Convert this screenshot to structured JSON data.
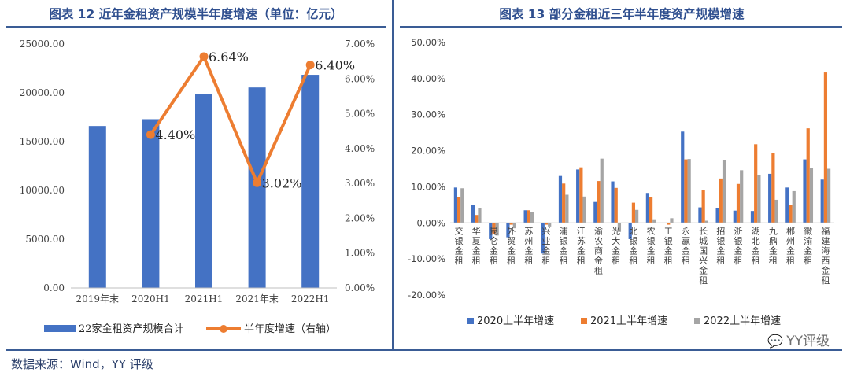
{
  "left_panel": {
    "title": "图表 12 近年金租资产规模半年度增速（单位：亿元）"
  },
  "right_panel": {
    "title": "图表 13 部分金租近三年半年度资产规模增速"
  },
  "footer": {
    "source": "数据来源：Wind，YY 评级"
  },
  "watermark": {
    "text": "YY评级",
    "icon": "wechat-icon"
  },
  "chart_data": [
    {
      "type": "bar",
      "categories": [
        "2019年末",
        "2020H1",
        "2021H1",
        "2021年末",
        "2022H1"
      ],
      "series": [
        {
          "name": "22家金租资产规模合计",
          "chart": "bar",
          "axis": "left",
          "color": "#4472c4",
          "values": [
            16600,
            17300,
            19850,
            20550,
            21850
          ]
        },
        {
          "name": "半年度增速（右轴）",
          "chart": "line",
          "axis": "right",
          "color": "#ed7d31",
          "values": [
            null,
            4.4,
            6.64,
            3.02,
            6.4
          ],
          "labels": [
            "",
            "4.40%",
            "6.64%",
            "3.02%",
            "6.40%"
          ]
        }
      ],
      "ylim_left": [
        0,
        25000
      ],
      "yticks_left": [
        "0.00",
        "5000.00",
        "10000.00",
        "15000.00",
        "20000.00",
        "25000.00"
      ],
      "ylim_right": [
        0,
        7
      ],
      "yticks_right": [
        "0.00%",
        "1.00%",
        "2.00%",
        "3.00%",
        "4.00%",
        "5.00%",
        "6.00%",
        "7.00%"
      ],
      "legend": "bottom",
      "grid": false
    },
    {
      "type": "bar",
      "categories": [
        "交银金租",
        "华夏金租",
        "昆仑金租",
        "外贸金租",
        "苏州金租",
        "兴业金租",
        "浦银金租",
        "江苏金租",
        "渝农商金租",
        "光大金租",
        "北银金租",
        "农银金租",
        "工银金租",
        "永赢金租",
        "长城国兴金租",
        "招银金租",
        "浙银金租",
        "湖北金租",
        "九鼎金租",
        "郴州金租",
        "徽渝金租",
        "福建海西金租"
      ],
      "series": [
        {
          "name": "2020上半年增速",
          "color": "#4472c4",
          "values": [
            9.8,
            5.0,
            -4.5,
            -4.0,
            3.5,
            -8.5,
            13.0,
            14.8,
            5.8,
            11.5,
            -4.5,
            8.3,
            0,
            25.3,
            4.3,
            4.0,
            3.4,
            3.3,
            13.6,
            9.8,
            17.6,
            12.0
          ]
        },
        {
          "name": "2021上半年增速",
          "color": "#ed7d31",
          "values": [
            7.2,
            2.2,
            -3.2,
            -0.5,
            3.5,
            -0.5,
            10.9,
            15.4,
            11.6,
            9.7,
            5.6,
            7.2,
            -0.5,
            17.6,
            9.0,
            12.3,
            10.8,
            21.8,
            19.3,
            5.0,
            26.2,
            41.7
          ]
        },
        {
          "name": "2022上半年增速",
          "color": "#a5a5a5",
          "values": [
            9.6,
            4.0,
            -3.5,
            -1.5,
            3.0,
            -1.0,
            7.8,
            7.3,
            17.8,
            -2.5,
            3.6,
            1.0,
            1.3,
            17.7,
            0.6,
            17.5,
            14.6,
            13.3,
            6.4,
            8.8,
            15.2,
            15.0
          ]
        }
      ],
      "ylim": [
        -20,
        50
      ],
      "yticks": [
        "-20.00%",
        "-10.00%",
        "0.00%",
        "10.00%",
        "20.00%",
        "30.00%",
        "40.00%",
        "50.00%"
      ],
      "legend": "bottom",
      "grid": false
    }
  ]
}
